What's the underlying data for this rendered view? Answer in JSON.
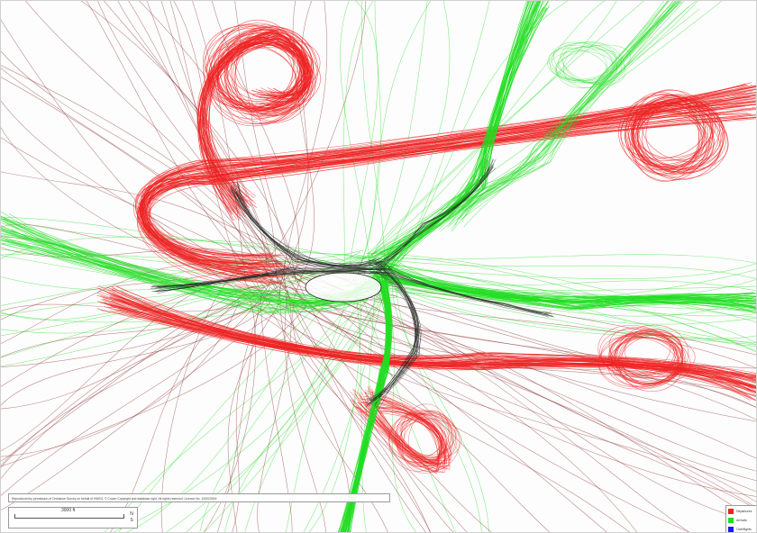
{
  "map": {
    "background_color": "#fdfdfd",
    "departure_color": "#ee2222",
    "arrival_color": "#22dd22",
    "overflight_color": "#1a1aff",
    "holding_color": "#222222"
  },
  "copyright": {
    "text": "Reproduced by permission of Ordnance Survey on behalf of HMSO. © Crown Copyright and database right. All rights reserved. Licence No. 100023915"
  },
  "scalebar": {
    "label": "3000 ft",
    "ticks": [
      "N",
      "S"
    ]
  },
  "legend": {
    "items": [
      {
        "label": "Departures",
        "color": "#ee2222"
      },
      {
        "label": "Arrivals",
        "color": "#22dd22"
      },
      {
        "label": "Overflights",
        "color": "#1a1aff"
      }
    ]
  }
}
